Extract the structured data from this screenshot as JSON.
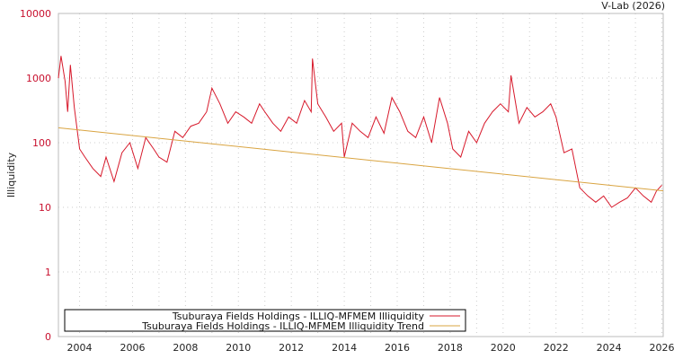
{
  "chart_data": {
    "type": "line",
    "title": "",
    "watermark": "V-Lab (2026)",
    "ylabel": "Illiquidity",
    "xlabel": "",
    "yscale": "log",
    "ylim": [
      0.1,
      10000
    ],
    "xlim": [
      2003.2,
      2026.05
    ],
    "y_ticks": [
      {
        "value": 10000,
        "label": "10000"
      },
      {
        "value": 1000,
        "label": "1000"
      },
      {
        "value": 100,
        "label": "100"
      },
      {
        "value": 10,
        "label": "10"
      },
      {
        "value": 1,
        "label": "1"
      },
      {
        "value": 0.1,
        "label": "0"
      }
    ],
    "x_ticks": [
      "2004",
      "2006",
      "2008",
      "2010",
      "2012",
      "2014",
      "2016",
      "2018",
      "2020",
      "2022",
      "2024",
      "2026"
    ],
    "grid": true,
    "legend_position": "bottom-left",
    "colors": {
      "illiquidity": "#d7192b",
      "trend": "#d9a441"
    },
    "series": [
      {
        "name": "Tsuburaya Fields Holdings - ILLIQ-MFMEM Illiquidity",
        "color": "#d7192b",
        "x": [
          2003.2,
          2003.3,
          2003.45,
          2003.55,
          2003.65,
          2003.8,
          2004.0,
          2004.2,
          2004.5,
          2004.8,
          2005.0,
          2005.3,
          2005.6,
          2005.9,
          2006.2,
          2006.5,
          2006.8,
          2007.0,
          2007.3,
          2007.6,
          2007.9,
          2008.2,
          2008.5,
          2008.8,
          2009.0,
          2009.3,
          2009.6,
          2009.9,
          2010.2,
          2010.5,
          2010.8,
          2011.0,
          2011.3,
          2011.6,
          2011.9,
          2012.2,
          2012.5,
          2012.75,
          2012.8,
          2013.0,
          2013.3,
          2013.6,
          2013.9,
          2014.0,
          2014.3,
          2014.6,
          2014.9,
          2015.2,
          2015.5,
          2015.8,
          2016.1,
          2016.4,
          2016.7,
          2017.0,
          2017.3,
          2017.6,
          2017.9,
          2018.1,
          2018.4,
          2018.7,
          2019.0,
          2019.3,
          2019.6,
          2019.9,
          2020.2,
          2020.3,
          2020.6,
          2020.9,
          2021.2,
          2021.5,
          2021.8,
          2022.0,
          2022.3,
          2022.6,
          2022.9,
          2023.2,
          2023.5,
          2023.8,
          2024.1,
          2024.4,
          2024.7,
          2025.0,
          2025.3,
          2025.6,
          2025.8,
          2026.0
        ],
        "values": [
          1000,
          2200,
          900,
          300,
          1600,
          350,
          80,
          60,
          40,
          30,
          60,
          25,
          70,
          100,
          40,
          120,
          80,
          60,
          50,
          150,
          120,
          180,
          200,
          300,
          700,
          400,
          200,
          300,
          250,
          200,
          400,
          300,
          200,
          150,
          250,
          200,
          450,
          300,
          2000,
          400,
          250,
          150,
          200,
          60,
          200,
          150,
          120,
          250,
          140,
          500,
          300,
          150,
          120,
          250,
          100,
          500,
          200,
          80,
          60,
          150,
          100,
          200,
          300,
          400,
          300,
          1100,
          200,
          350,
          250,
          300,
          400,
          250,
          70,
          80,
          20,
          15,
          12,
          15,
          10,
          12,
          14,
          20,
          15,
          12,
          18,
          22
        ]
      },
      {
        "name": "Tsuburaya Fields Holdings - ILLIQ-MFMEM Illiquidity Trend",
        "color": "#d9a441",
        "x": [
          2003.2,
          2026.05
        ],
        "values": [
          170,
          18
        ]
      }
    ]
  }
}
